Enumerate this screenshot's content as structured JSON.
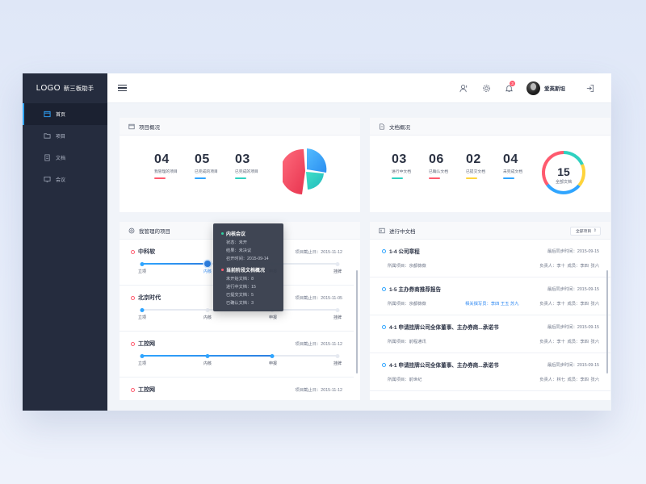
{
  "sidebar": {
    "logo": "LOGO",
    "app_name": "新三板助手",
    "items": [
      {
        "label": "首页",
        "icon": "home-icon",
        "active": true
      },
      {
        "label": "项目",
        "icon": "folder-icon",
        "active": false
      },
      {
        "label": "文档",
        "icon": "document-icon",
        "active": false
      },
      {
        "label": "会议",
        "icon": "meeting-icon",
        "active": false
      }
    ]
  },
  "topbar": {
    "notification_count": "3",
    "username": "爱英斯坦"
  },
  "project_overview": {
    "title": "项目概况",
    "stats": [
      {
        "value": "04",
        "label": "我管理的项目",
        "color": "#ff5a6e"
      },
      {
        "value": "05",
        "label": "已完成的项目",
        "color": "#2fa5ff"
      },
      {
        "value": "03",
        "label": "已完成的项目",
        "color": "#2fd1c0"
      }
    ],
    "pie_colors": [
      "#ff4f6a",
      "#2fa5ff",
      "#2fd1c0"
    ]
  },
  "doc_overview": {
    "title": "文档概况",
    "stats": [
      {
        "value": "03",
        "label": "进行中文档",
        "color": "#2fd1c0"
      },
      {
        "value": "06",
        "label": "已确认文档",
        "color": "#ff5a6e"
      },
      {
        "value": "02",
        "label": "已提交文档",
        "color": "#ffd43b"
      },
      {
        "value": "04",
        "label": "未完成文档",
        "color": "#2fa5ff"
      }
    ],
    "total_value": "15",
    "total_label": "全部文档",
    "ring_colors": [
      "#2fd1c0",
      "#ff5a6e",
      "#ffd43b",
      "#2fa5ff"
    ]
  },
  "my_projects": {
    "title": "我管理的项目",
    "stages": [
      "立项",
      "内核",
      "申报",
      "挂牌"
    ],
    "items": [
      {
        "name": "中科软",
        "date": "项目截止日：2015-11-12",
        "progress": 0.35,
        "current": 1
      },
      {
        "name": "北京时代",
        "date": "项目截止日：2015-11-05",
        "progress": 0,
        "current": -1
      },
      {
        "name": "工控网",
        "date": "项目截止日：2015-11-12",
        "progress": 0.67,
        "current": 2
      },
      {
        "name": "工控网",
        "date": "项目截止日：2015-11-12",
        "progress": 0,
        "current": -1
      }
    ]
  },
  "tooltip": {
    "meeting_title": "内核会议",
    "meeting_lines": [
      "状态：未开",
      "结果：未决议",
      "召开时间：2015-09-14"
    ],
    "docs_title": "当前阶段文档概况",
    "docs_lines": [
      "未开始文档：8",
      "进行中文档：15",
      "已提交文档：5",
      "已确认文档：3"
    ]
  },
  "docs_in_progress": {
    "title": "进行中文档",
    "filter": "全部项目",
    "items": [
      {
        "title": "1-4 公司章程",
        "sync": "最后同步时间：2015-09-15",
        "project": "所属项目：京都薇薇",
        "related": "",
        "people": "负责人：李十  成员：李四  张六"
      },
      {
        "title": "1-5 主办券商推荐报告",
        "sync": "最后同步时间：2015-09-15",
        "project": "所属项目：京都薇薇",
        "related": "相关撰写员：李四  王五  苏九",
        "people": "负责人：李十  成员：李四  张六"
      },
      {
        "title": "4-1 申请挂牌公司全体董事、主办券商...承诺书",
        "sync": "最后同步时间：2015-09-15",
        "project": "所属项目：前程通讯",
        "related": "",
        "people": "负责人：李十  成员：李四  张六"
      },
      {
        "title": "4-1 申请挂牌公司全体董事、主办券商...承诺书",
        "sync": "最后同步时间：2015-09-15",
        "project": "所属项目：前世纪",
        "related": "",
        "people": "负责人：林七  成员：李四  张六"
      }
    ]
  }
}
